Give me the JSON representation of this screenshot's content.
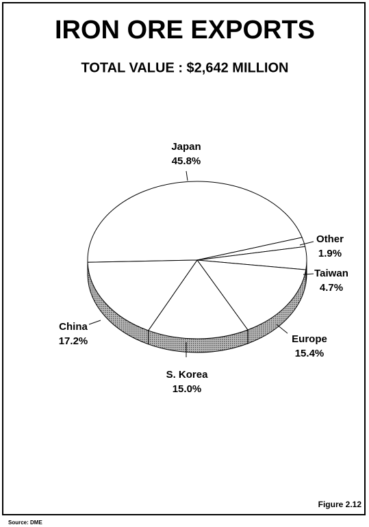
{
  "chart_data": {
    "type": "pie",
    "title": "IRON ORE EXPORTS",
    "subtitle": "TOTAL VALUE : $2,642 MILLION",
    "categories": [
      "Japan",
      "Other",
      "Taiwan",
      "Europe",
      "S. Korea",
      "China"
    ],
    "values": [
      45.8,
      1.9,
      4.7,
      15.4,
      15.0,
      17.2
    ],
    "value_labels": [
      "45.8%",
      "1.9%",
      "4.7%",
      "15.4%",
      "15.0%",
      "17.2%"
    ],
    "source": "Source: DME",
    "figure": "Figure 2.12"
  }
}
